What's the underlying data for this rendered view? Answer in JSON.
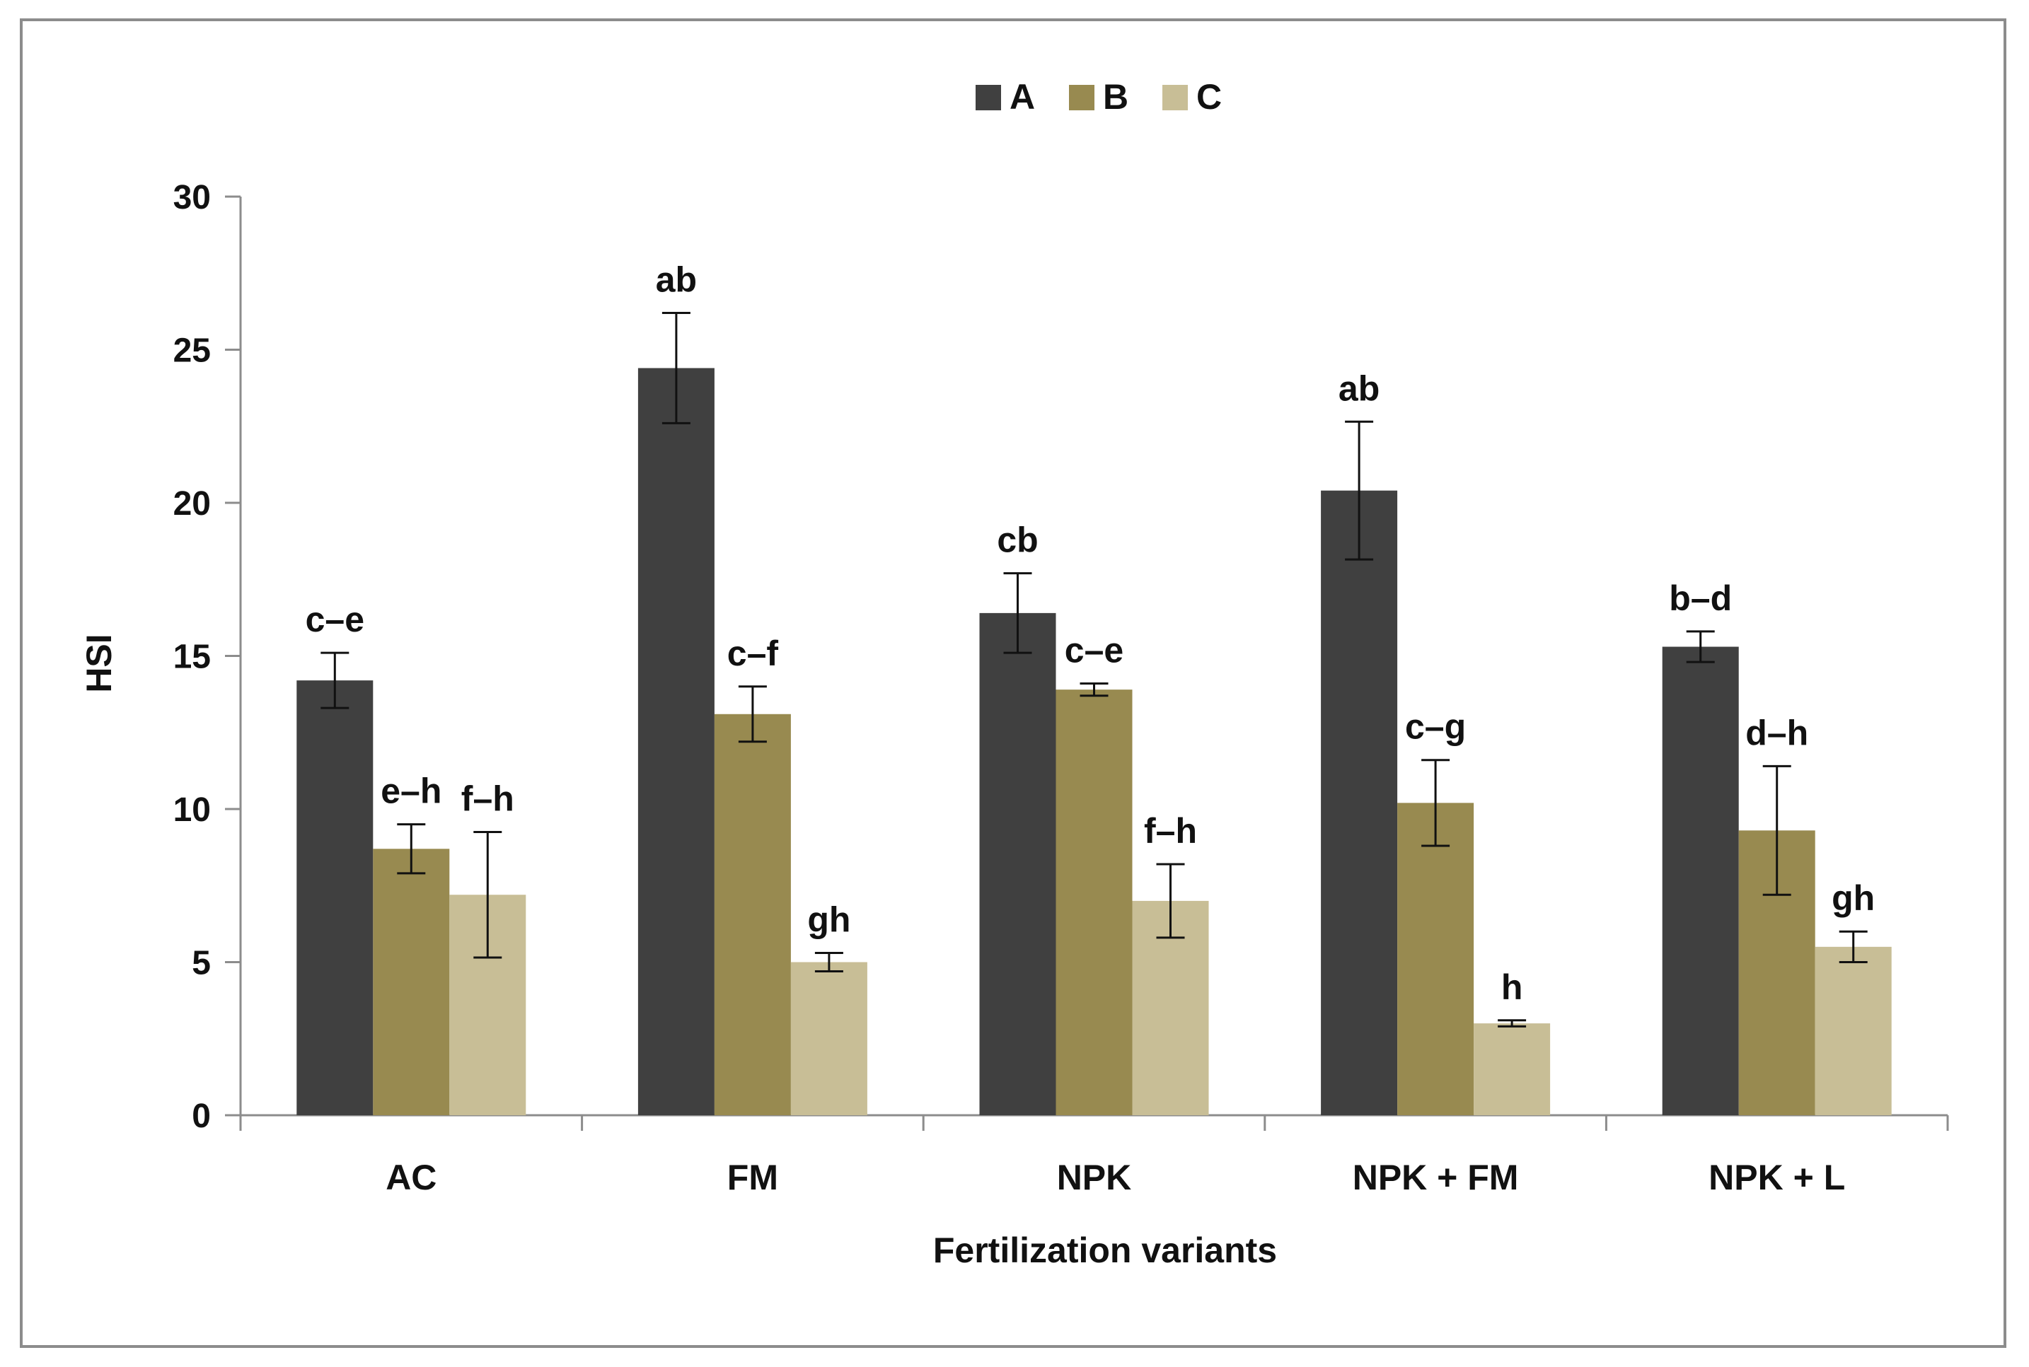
{
  "chart_data": {
    "type": "bar",
    "title": "",
    "xlabel": "Fertilization variants",
    "ylabel": "HSI",
    "ylim": [
      0,
      30
    ],
    "yticks": [
      0,
      5,
      10,
      15,
      20,
      25,
      30
    ],
    "categories": [
      "AC",
      "FM",
      "NPK",
      "NPK + FM",
      "NPK + L"
    ],
    "legend_position": "top-center",
    "series": [
      {
        "name": "A",
        "color": "#404040",
        "values": [
          14.2,
          24.4,
          16.4,
          20.4,
          15.3
        ],
        "errors": [
          0.9,
          1.8,
          1.3,
          2.25,
          0.5
        ],
        "labels": [
          "c–e",
          "ab",
          "cb",
          "ab",
          "b–d"
        ]
      },
      {
        "name": "B",
        "color": "#988a50",
        "values": [
          8.7,
          13.1,
          13.9,
          10.2,
          9.3
        ],
        "errors": [
          0.8,
          0.9,
          0.2,
          1.4,
          2.1
        ],
        "labels": [
          "e–h",
          "c–f",
          "c–e",
          "c–g",
          "d–h"
        ]
      },
      {
        "name": "C",
        "color": "#c8be96",
        "values": [
          7.2,
          5.0,
          7.0,
          3.0,
          5.5
        ],
        "errors": [
          2.05,
          0.3,
          1.2,
          0.1,
          0.5
        ],
        "labels": [
          "f–h",
          "gh",
          "f–h",
          "h",
          "gh"
        ]
      }
    ]
  }
}
